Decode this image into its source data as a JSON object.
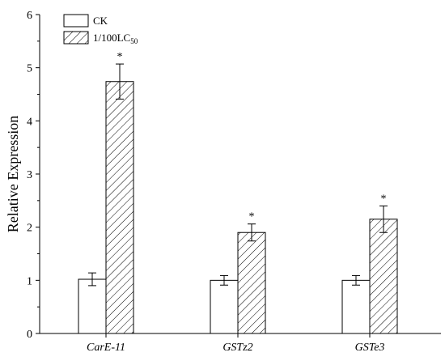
{
  "chart_data": {
    "type": "bar",
    "categories": [
      "CarE-11",
      "GSTz2",
      "GSTe3"
    ],
    "series": [
      {
        "name": "CK",
        "pattern": "none",
        "values": [
          1.02,
          1.0,
          1.0
        ],
        "errors": [
          0.12,
          0.09,
          0.09
        ],
        "significance": [
          "",
          "",
          ""
        ]
      },
      {
        "name": "1/100LC",
        "name_subscript": "50",
        "pattern": "diagonal-hatch",
        "values": [
          4.74,
          1.9,
          2.15
        ],
        "errors": [
          0.33,
          0.16,
          0.25
        ],
        "significance": [
          "*",
          "*",
          "*"
        ]
      }
    ],
    "ylabel": "Relative Expression",
    "xlabel": "",
    "ylim": [
      0,
      6
    ],
    "yticks": [
      "0",
      "1",
      "2",
      "3",
      "4",
      "5",
      "6"
    ],
    "legend_position": "top-left",
    "grid": false,
    "colors": {
      "bar_fill": "#ffffff",
      "bar_stroke": "#000000",
      "hatch": "#000000"
    }
  }
}
